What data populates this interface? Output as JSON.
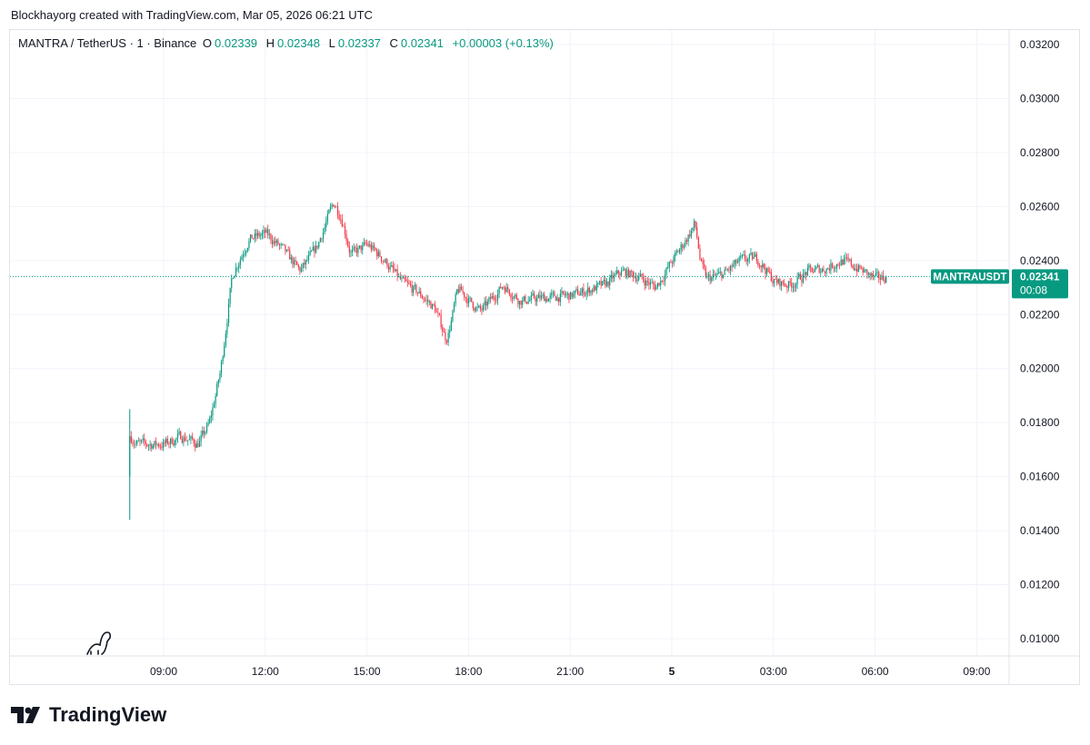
{
  "credit": "Blockhayorg created with TradingView.com, Mar 05, 2026 06:21 UTC",
  "legend": {
    "symbol": "MANTRA / TetherUS · 1 · Binance",
    "o_label": "O",
    "o": "0.02339",
    "h_label": "H",
    "h": "0.02348",
    "l_label": "L",
    "l": "0.02337",
    "c_label": "C",
    "c": "0.02341",
    "change": "+0.00003 (+0.13%)"
  },
  "price_tag": {
    "symbol": "MANTRAUSDT",
    "price": "0.02341",
    "countdown": "00:08"
  },
  "logo_text": "TradingView",
  "colors": {
    "up": "#089981",
    "down": "#f23645",
    "grid": "#f0f3fa",
    "tag": "#089981"
  },
  "chart_data": {
    "type": "candlestick",
    "interval": "1 minute",
    "ylim": [
      0.0092,
      0.0328
    ],
    "y_ticks": [
      "0.03200",
      "0.03000",
      "0.02800",
      "0.02600",
      "0.02400",
      "0.02200",
      "0.02000",
      "0.01800",
      "0.01600",
      "0.01400",
      "0.01200",
      "0.01000"
    ],
    "x_ticks": [
      {
        "label": "09:00",
        "t": "03-04 09:00"
      },
      {
        "label": "12:00",
        "t": "03-04 12:00"
      },
      {
        "label": "15:00",
        "t": "03-04 15:00"
      },
      {
        "label": "18:00",
        "t": "03-04 18:00"
      },
      {
        "label": "21:00",
        "t": "03-04 21:00"
      },
      {
        "label": "5",
        "t": "03-05 00:00",
        "bold": true
      },
      {
        "label": "03:00",
        "t": "03-05 03:00"
      },
      {
        "label": "06:00",
        "t": "03-05 06:00"
      },
      {
        "label": "09:00",
        "t": "03-05 09:00"
      }
    ],
    "approx_path": [
      [
        "03-04 08:00",
        0.0175
      ],
      [
        "03-04 08:10",
        0.0172
      ],
      [
        "03-04 09:00",
        0.0172
      ],
      [
        "03-04 09:30",
        0.0175
      ],
      [
        "03-04 10:00",
        0.0172
      ],
      [
        "03-04 10:20",
        0.018
      ],
      [
        "03-04 10:40",
        0.02
      ],
      [
        "03-04 11:00",
        0.0235
      ],
      [
        "03-04 11:30",
        0.0248
      ],
      [
        "03-04 12:00",
        0.025
      ],
      [
        "03-04 12:30",
        0.0244
      ],
      [
        "03-04 13:00",
        0.0236
      ],
      [
        "03-04 13:30",
        0.0245
      ],
      [
        "03-04 14:00",
        0.0262
      ],
      [
        "03-04 14:15",
        0.0255
      ],
      [
        "03-04 14:30",
        0.0242
      ],
      [
        "03-04 15:00",
        0.0246
      ],
      [
        "03-04 15:30",
        0.024
      ],
      [
        "03-04 16:00",
        0.0232
      ],
      [
        "03-04 16:30",
        0.0228
      ],
      [
        "03-04 17:00",
        0.0222
      ],
      [
        "03-04 17:20",
        0.021
      ],
      [
        "03-04 17:40",
        0.023
      ],
      [
        "03-04 18:00",
        0.0225
      ],
      [
        "03-04 18:20",
        0.0221
      ],
      [
        "03-04 19:00",
        0.0231
      ],
      [
        "03-04 19:30",
        0.0225
      ],
      [
        "03-04 20:00",
        0.0226
      ],
      [
        "03-04 21:00",
        0.0227
      ],
      [
        "03-04 22:00",
        0.0231
      ],
      [
        "03-04 22:30",
        0.0236
      ],
      [
        "03-04 23:00",
        0.0234
      ],
      [
        "03-04 23:30",
        0.023
      ],
      [
        "03-05 00:00",
        0.024
      ],
      [
        "03-05 00:30",
        0.025
      ],
      [
        "03-05 00:40",
        0.0254
      ],
      [
        "03-05 00:50",
        0.0238
      ],
      [
        "03-05 01:00",
        0.0233
      ],
      [
        "03-05 01:30",
        0.0235
      ],
      [
        "03-05 02:00",
        0.024
      ],
      [
        "03-05 02:30",
        0.0241
      ],
      [
        "03-05 03:00",
        0.0232
      ],
      [
        "03-05 03:30",
        0.0231
      ],
      [
        "03-05 04:00",
        0.0236
      ],
      [
        "03-05 04:30",
        0.0237
      ],
      [
        "03-05 05:00",
        0.024
      ],
      [
        "03-05 05:30",
        0.0237
      ],
      [
        "03-05 06:00",
        0.0233
      ],
      [
        "03-05 06:20",
        0.02341
      ]
    ],
    "first_candle": {
      "t": "03-04 08:00",
      "open": 0.016,
      "high": 0.0185,
      "low": 0.0144,
      "close": 0.0175
    },
    "last_price": 0.02341
  }
}
